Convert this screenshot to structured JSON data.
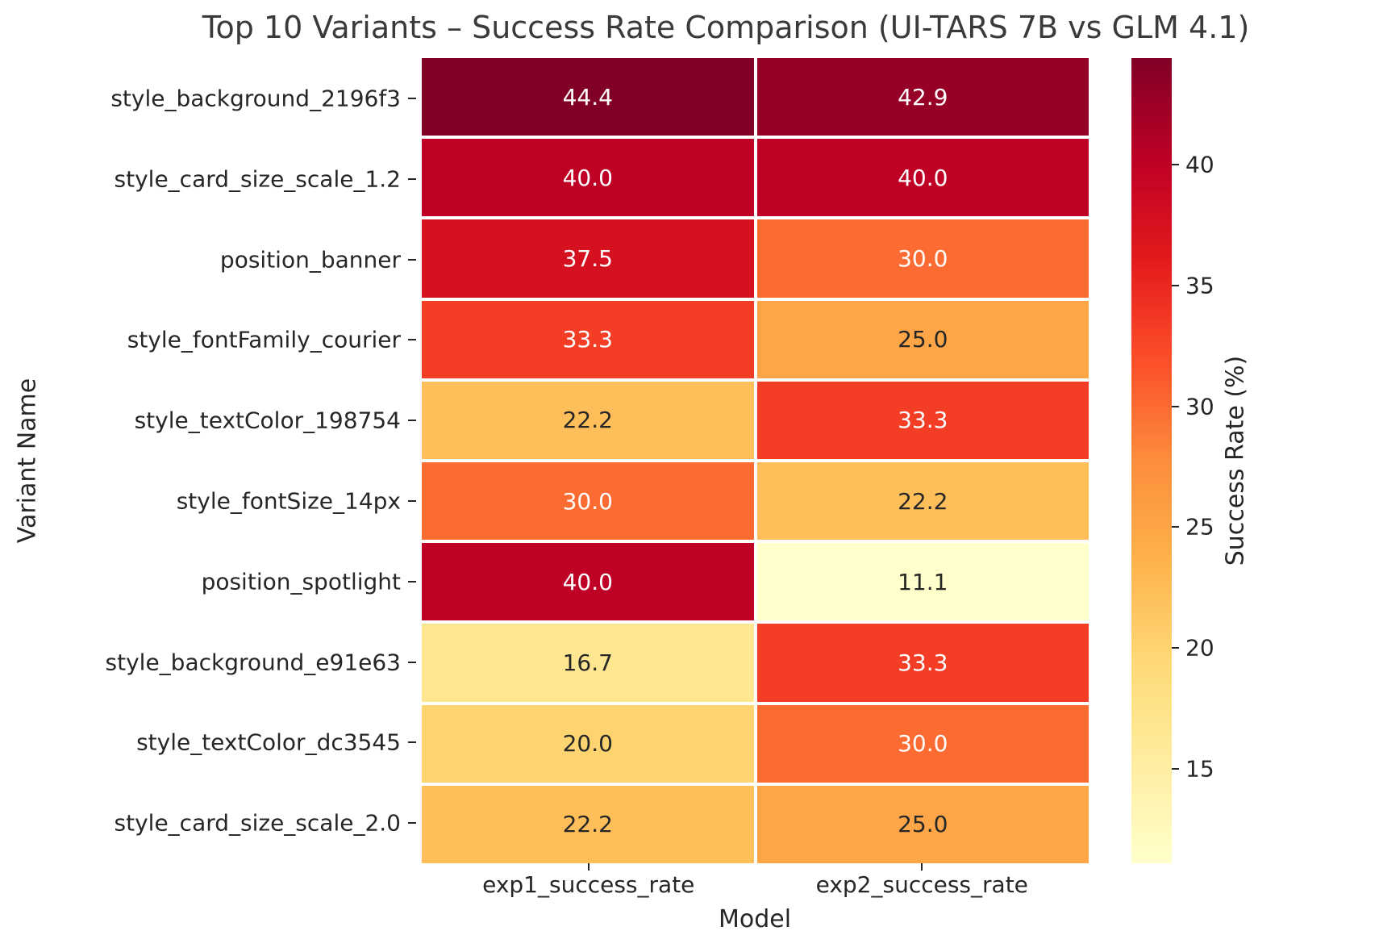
{
  "title": "Top 10 Variants – Success Rate Comparison (UI-TARS 7B vs GLM 4.1)",
  "xlabel": "Model",
  "ylabel": "Variant Name",
  "chart_data": {
    "type": "heatmap",
    "title": "Top 10 Variants – Success Rate Comparison (UI-TARS 7B vs GLM 4.1)",
    "xlabel": "Model",
    "ylabel": "Variant Name",
    "columns": [
      "exp1_success_rate",
      "exp2_success_rate"
    ],
    "rows": [
      "style_background_2196f3",
      "style_card_size_scale_1.2",
      "position_banner",
      "style_fontFamily_courier",
      "style_textColor_198754",
      "style_fontSize_14px",
      "position_spotlight",
      "style_background_e91e63",
      "style_textColor_dc3545",
      "style_card_size_scale_2.0"
    ],
    "values": [
      [
        44.4,
        42.9
      ],
      [
        40.0,
        40.0
      ],
      [
        37.5,
        30.0
      ],
      [
        33.3,
        25.0
      ],
      [
        22.2,
        33.3
      ],
      [
        30.0,
        22.2
      ],
      [
        40.0,
        11.1
      ],
      [
        16.7,
        33.3
      ],
      [
        20.0,
        30.0
      ],
      [
        22.2,
        25.0
      ]
    ],
    "value_format": "one_decimal",
    "vmin": 11.1,
    "vmax": 44.4,
    "colormap": "YlOrRd",
    "colormap_stops": [
      "#ffffcc",
      "#ffeda0",
      "#fed976",
      "#feb24c",
      "#fd8d3c",
      "#fc4e2a",
      "#e31a1c",
      "#bd0026",
      "#800026"
    ],
    "grid": false,
    "cell_gap_color": "#ffffff",
    "annotation_text_dark": "#262626",
    "annotation_text_light": "#ffffff",
    "colorbar": {
      "label": "Success Rate (%)",
      "ticks": [
        40,
        35,
        30,
        25,
        20,
        15
      ]
    }
  }
}
